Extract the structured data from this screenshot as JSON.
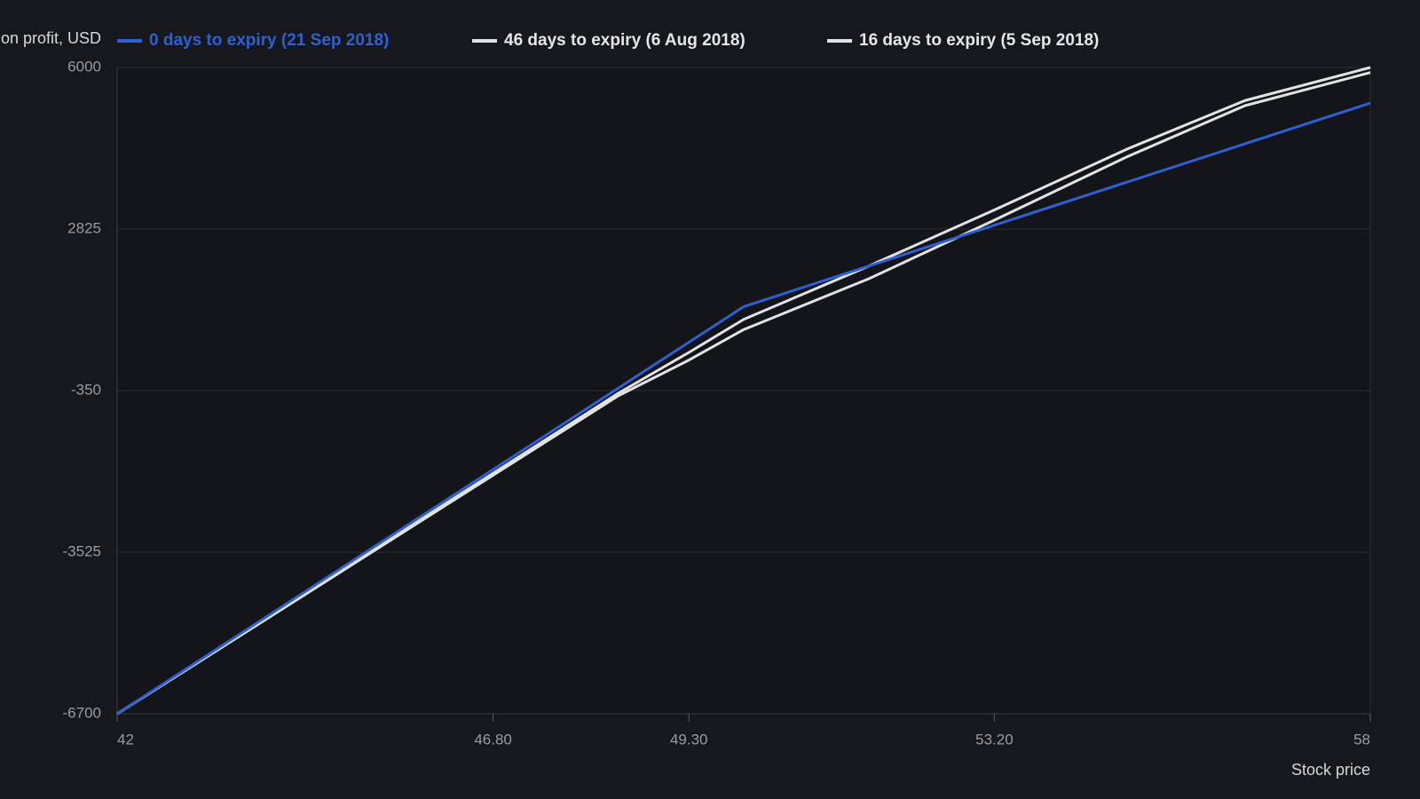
{
  "chart_data": {
    "type": "line",
    "y_label": "on profit, USD",
    "x_label": "Stock price",
    "x": [
      42,
      48.4,
      49.3,
      50,
      51.6,
      53.2,
      54.9,
      56.4,
      58
    ],
    "series": [
      {
        "name": "0 days to expiry (21 Sep 2018)",
        "color": "#2f5fd0",
        "values": [
          -6700,
          -300,
          600,
          1300,
          2100,
          2900,
          3750,
          4500,
          5300
        ]
      },
      {
        "name": "46 days to expiry (6 Aug 2018)",
        "color": "#e2e2e2",
        "values": [
          -6700,
          -400,
          400,
          1050,
          2100,
          3200,
          4400,
          5350,
          6000
        ]
      },
      {
        "name": "16 days to expiry (5 Sep 2018)",
        "color": "#e2e2e2",
        "values": [
          -6700,
          -450,
          250,
          850,
          1850,
          3000,
          4250,
          5250,
          5900
        ]
      }
    ],
    "xlim": [
      42,
      58
    ],
    "xticks": [
      42,
      {
        "value": 46.8,
        "label": "46.80"
      },
      {
        "value": 49.3,
        "label": "49.30"
      },
      {
        "value": 53.2,
        "label": "53.20"
      },
      58
    ],
    "ylim": [
      -6700,
      6000
    ],
    "yticks": [
      -6700,
      -3525,
      -350,
      2825,
      6000
    ],
    "grid": true
  }
}
